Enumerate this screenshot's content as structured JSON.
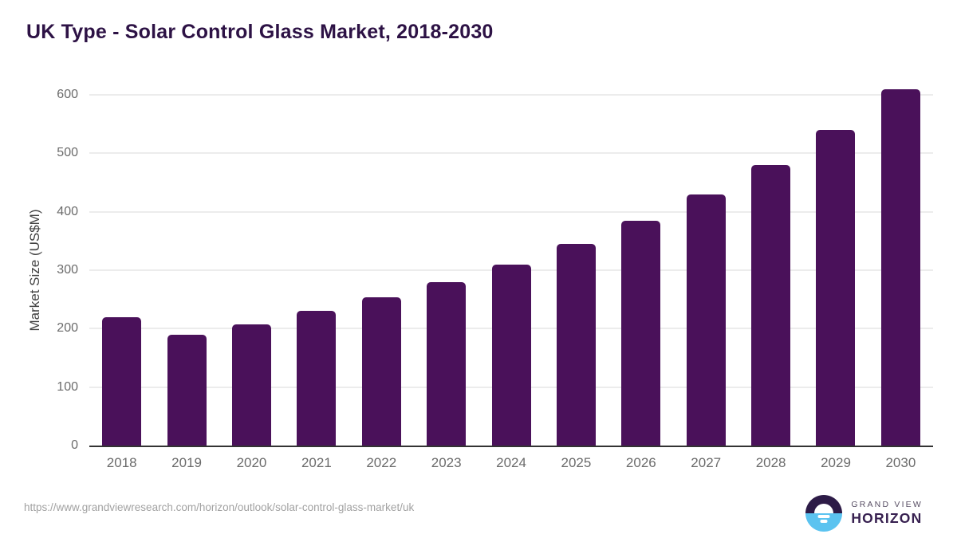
{
  "title": "UK Type - Solar Control Glass Market, 2018-2030",
  "chart_data": {
    "type": "bar",
    "title": "UK Type - Solar Control Glass Market, 2018-2030",
    "categories": [
      "2018",
      "2019",
      "2020",
      "2021",
      "2022",
      "2023",
      "2024",
      "2025",
      "2026",
      "2027",
      "2028",
      "2029",
      "2030"
    ],
    "values": [
      220,
      190,
      207,
      230,
      254,
      280,
      310,
      345,
      385,
      430,
      480,
      540,
      610
    ],
    "xlabel": "",
    "ylabel": "Market Size (US$M)",
    "ylim": [
      0,
      600
    ],
    "yticks": [
      0,
      100,
      200,
      300,
      400,
      500,
      600
    ],
    "grid": true,
    "legend": false
  },
  "footer": {
    "source_url": "https://www.grandviewresearch.com/horizon/outlook/solar-control-glass-market/uk",
    "logo": {
      "brand_top": "GRAND VIEW",
      "brand_bottom": "HORIZON"
    }
  },
  "colors": {
    "title": "#2d1245",
    "bar": "#4a115a",
    "grid": "#ececec",
    "axis": "#333333",
    "tick": "#6b6b6b",
    "url": "#a2a2a2",
    "logoDark": "#2d1b47",
    "logoBlue": "#5bc3f0"
  }
}
